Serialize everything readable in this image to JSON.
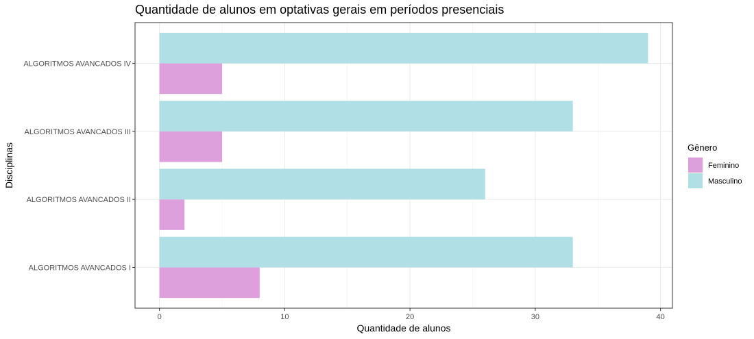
{
  "chart_data": {
    "type": "bar",
    "orientation": "horizontal",
    "title": "Quantidade de alunos em optativas gerais em períodos presenciais",
    "xlabel": "Quantidade de alunos",
    "ylabel": "Disciplinas",
    "categories": [
      "ALGORITMOS AVANCADOS I",
      "ALGORITMOS AVANCADOS II",
      "ALGORITMOS AVANCADOS III",
      "ALGORITMOS AVANCADOS IV"
    ],
    "series": [
      {
        "name": "Feminino",
        "color": "#DDA0DD",
        "values": [
          8,
          2,
          5,
          5
        ]
      },
      {
        "name": "Masculino",
        "color": "#B0E0E6",
        "values": [
          33,
          26,
          33,
          39
        ]
      }
    ],
    "xlim": [
      -1.95,
      40.95
    ],
    "xticks": [
      0,
      10,
      20,
      30,
      40
    ],
    "grid": true,
    "legend": {
      "title": "Gênero",
      "position": "right"
    }
  }
}
